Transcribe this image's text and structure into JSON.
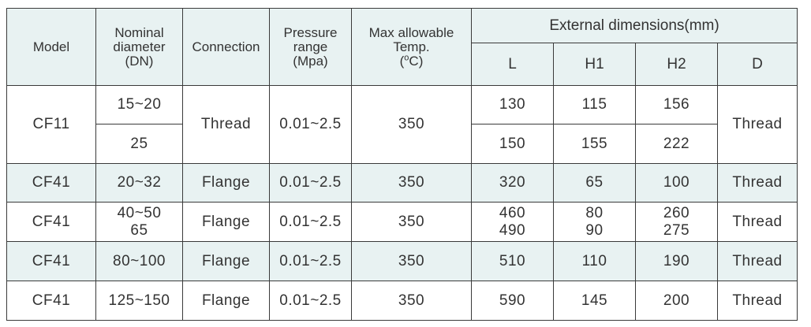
{
  "headers": {
    "model": "Model",
    "nominal": [
      "Nominal",
      "diameter",
      "(DN)"
    ],
    "connection": "Connection",
    "pressure": [
      "Pressure",
      "range",
      "(Mpa)"
    ],
    "temp": [
      "Max allowable",
      "Temp."
    ],
    "temp_unit_pre": "(",
    "temp_unit_sup": "o",
    "temp_unit_post": "C)",
    "external": "External dimensions(mm)",
    "L": "L",
    "H1": "H1",
    "H2": "H2",
    "D": "D"
  },
  "rows": [
    {
      "model": "CF11",
      "dn": "15~20",
      "connection": "Thread",
      "pressure": "0.01~2.5",
      "temp": "350",
      "L": "130",
      "H1": "115",
      "H2": "156",
      "D": "Thread"
    },
    {
      "dn": "25",
      "L": "150",
      "H1": "155",
      "H2": "222"
    },
    {
      "model": "CF41",
      "dn": "20~32",
      "connection": "Flange",
      "pressure": "0.01~2.5",
      "temp": "350",
      "L": "320",
      "H1": "65",
      "H2": "100",
      "D": "Thread"
    },
    {
      "model": "CF41",
      "dn": [
        "40~50",
        "65"
      ],
      "connection": "Flange",
      "pressure": "0.01~2.5",
      "temp": "350",
      "L": [
        "460",
        "490"
      ],
      "H1": [
        "80",
        "90"
      ],
      "H2": [
        "260",
        "275"
      ],
      "D": "Thread"
    },
    {
      "model": "CF41",
      "dn": "80~100",
      "connection": "Flange",
      "pressure": "0.01~2.5",
      "temp": "350",
      "L": "510",
      "H1": "110",
      "H2": "190",
      "D": "Thread"
    },
    {
      "model": "CF41",
      "dn": "125~150",
      "connection": "Flange",
      "pressure": "0.01~2.5",
      "temp": "350",
      "L": "590",
      "H1": "145",
      "H2": "200",
      "D": "Thread"
    }
  ]
}
